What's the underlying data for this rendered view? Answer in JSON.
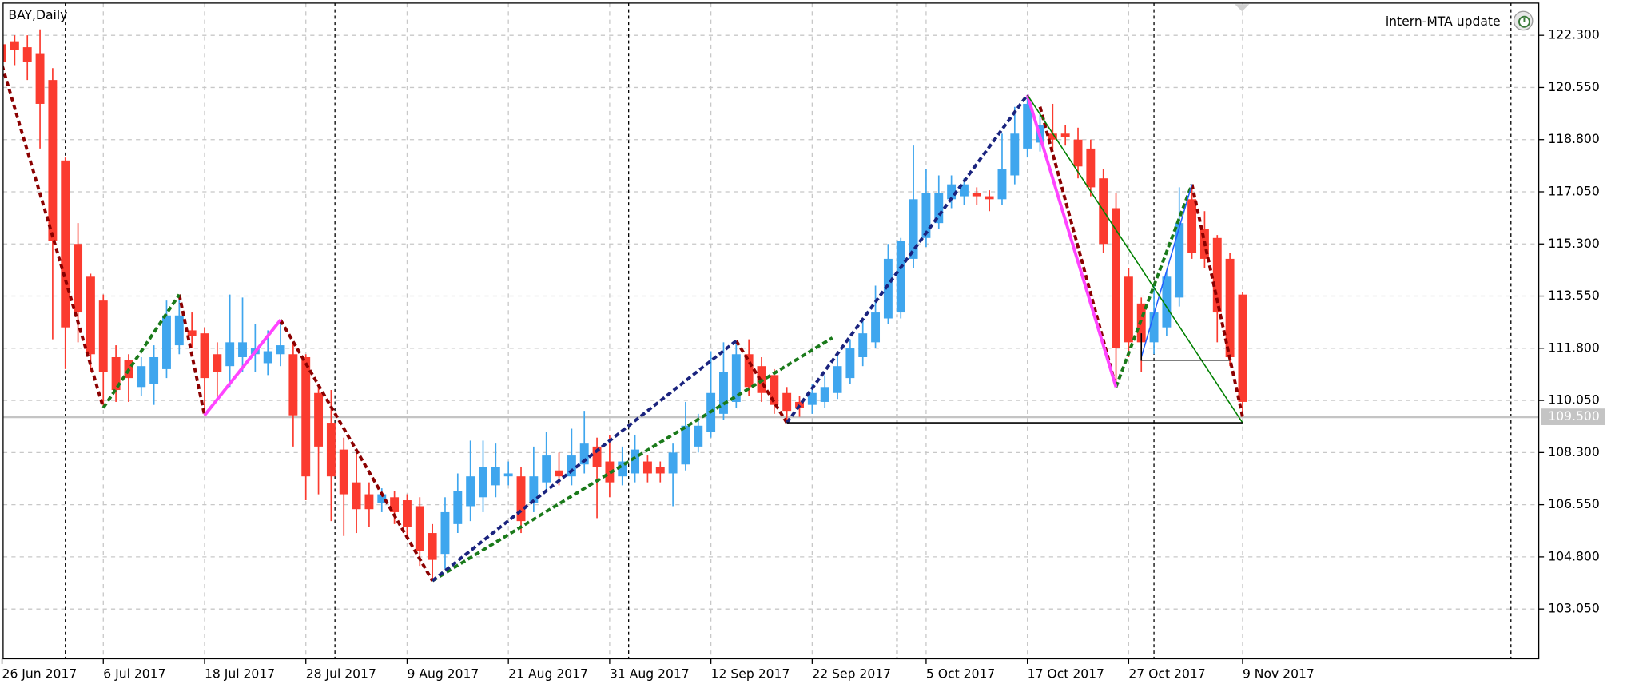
{
  "chart_data": {
    "type": "candlestick",
    "title": "BAY,Daily",
    "annotation": "intern-MTA update",
    "categories": [
      "26 Jun 2017",
      null,
      null,
      null,
      null,
      null,
      null,
      null,
      "6 Jul 2017",
      null,
      null,
      null,
      null,
      null,
      null,
      null,
      "18 Jul 2017",
      null,
      null,
      null,
      null,
      null,
      null,
      null,
      "28 Jul 2017",
      null,
      null,
      null,
      null,
      null,
      null,
      null,
      "9 Aug 2017",
      null,
      null,
      null,
      null,
      null,
      null,
      null,
      "21 Aug 2017",
      null,
      null,
      null,
      null,
      null,
      null,
      null,
      "31 Aug 2017",
      null,
      null,
      null,
      null,
      null,
      null,
      null,
      "12 Sep 2017",
      null,
      null,
      null,
      null,
      null,
      null,
      null,
      "22 Sep 2017",
      null,
      null,
      null,
      null,
      null,
      null,
      null,
      null,
      "5 Oct 2017",
      null,
      null,
      null,
      null,
      null,
      null,
      null,
      "17 Oct 2017",
      null,
      null,
      null,
      null,
      null,
      null,
      null,
      "27 Oct 2017",
      null,
      null,
      null,
      null,
      null,
      null,
      null,
      null,
      "9 Nov 2017"
    ],
    "open": [
      122.0,
      122.1,
      121.9,
      121.7,
      120.8,
      118.1,
      115.3,
      114.2,
      113.4,
      111.5,
      111.4,
      110.5,
      110.6,
      111.1,
      111.9,
      112.4,
      112.3,
      111.6,
      111.2,
      111.5,
      111.6,
      111.3,
      111.6,
      111.6,
      111.5,
      110.3,
      109.3,
      108.4,
      107.3,
      106.9,
      106.6,
      106.8,
      106.7,
      106.5,
      105.6,
      104.9,
      105.9,
      106.5,
      106.8,
      107.2,
      107.5,
      107.5,
      106.6,
      107.3,
      107.7,
      107.5,
      107.9,
      108.5,
      108.0,
      107.5,
      107.6,
      108.0,
      107.8,
      107.6,
      107.9,
      108.5,
      109.0,
      109.6,
      110.0,
      111.6,
      111.2,
      110.9,
      110.3,
      110.0,
      109.9,
      110.0,
      110.3,
      110.8,
      111.5,
      112.0,
      112.8,
      113.0,
      114.8,
      115.5,
      116.0,
      116.8,
      116.9,
      117.0,
      116.9,
      116.8,
      117.6,
      118.5,
      118.7,
      119.0,
      119.0,
      118.8,
      118.5,
      117.5,
      116.5,
      114.2,
      113.3,
      112.0,
      112.5,
      113.5,
      116.8,
      115.8,
      115.5,
      114.8,
      113.6
    ],
    "high": [
      122.4,
      122.3,
      122.3,
      122.5,
      121.2,
      118.2,
      116.0,
      114.3,
      113.6,
      111.9,
      111.6,
      111.5,
      111.9,
      113.4,
      113.6,
      113.0,
      112.5,
      112.0,
      113.6,
      113.5,
      112.6,
      112.4,
      112.75,
      112.0,
      111.6,
      110.6,
      110.4,
      108.8,
      108.3,
      107.3,
      107.1,
      107.0,
      106.9,
      106.8,
      105.9,
      106.8,
      107.6,
      108.7,
      108.7,
      108.6,
      108.0,
      107.8,
      108.5,
      109.0,
      108.3,
      109.1,
      109.7,
      108.8,
      108.9,
      108.5,
      108.9,
      108.2,
      108.0,
      108.6,
      110.0,
      109.6,
      111.7,
      112.0,
      112.05,
      112.1,
      111.5,
      111.1,
      110.5,
      110.2,
      110.6,
      110.9,
      111.6,
      112.1,
      112.8,
      113.9,
      115.3,
      115.5,
      118.6,
      117.8,
      117.6,
      117.6,
      117.5,
      117.2,
      117.1,
      119.0,
      119.9,
      120.3,
      119.7,
      120.0,
      119.3,
      119.2,
      118.8,
      117.8,
      117.0,
      114.5,
      113.5,
      113.9,
      114.4,
      117.2,
      117.3,
      116.4,
      115.6,
      115.0,
      113.7
    ],
    "low": [
      120.8,
      121.3,
      120.8,
      118.5,
      112.1,
      111.1,
      112.0,
      111.0,
      109.8,
      110.0,
      110.0,
      110.2,
      109.9,
      110.8,
      111.6,
      111.8,
      109.55,
      110.2,
      110.5,
      111.0,
      111.0,
      110.9,
      111.2,
      108.5,
      106.7,
      106.9,
      106.0,
      105.5,
      105.6,
      105.8,
      106.3,
      105.9,
      105.5,
      104.5,
      104.0,
      104.4,
      105.6,
      106.0,
      106.3,
      106.8,
      107.2,
      105.6,
      106.3,
      107.0,
      107.2,
      107.2,
      107.6,
      106.1,
      106.8,
      107.2,
      107.3,
      107.3,
      107.3,
      106.5,
      107.7,
      108.3,
      108.8,
      109.4,
      109.8,
      110.2,
      110.0,
      109.6,
      109.3,
      109.5,
      109.6,
      109.8,
      110.1,
      110.6,
      111.2,
      111.8,
      112.6,
      112.8,
      114.5,
      115.2,
      115.8,
      116.5,
      116.6,
      116.6,
      116.4,
      116.6,
      117.3,
      118.2,
      118.4,
      118.5,
      118.6,
      117.5,
      116.9,
      115.0,
      110.5,
      111.5,
      111.0,
      111.6,
      112.2,
      113.2,
      114.8,
      114.5,
      112.0,
      111.2,
      109.5
    ],
    "close": [
      121.4,
      121.8,
      121.4,
      120.0,
      115.4,
      112.5,
      113.0,
      111.6,
      111.0,
      110.4,
      110.8,
      111.2,
      111.5,
      112.9,
      112.9,
      112.2,
      110.8,
      111.0,
      112.0,
      112.0,
      111.8,
      111.7,
      111.9,
      109.55,
      107.5,
      108.5,
      107.5,
      106.9,
      106.4,
      106.4,
      106.9,
      106.3,
      105.8,
      105.0,
      104.7,
      106.3,
      107.0,
      107.5,
      107.8,
      107.8,
      107.6,
      106.0,
      107.5,
      108.2,
      107.5,
      108.2,
      108.6,
      107.8,
      107.3,
      108.0,
      108.4,
      107.6,
      107.6,
      108.3,
      109.2,
      109.2,
      110.3,
      111.0,
      111.6,
      110.5,
      110.3,
      109.9,
      109.7,
      109.8,
      110.3,
      110.5,
      111.2,
      111.8,
      112.3,
      113.0,
      114.8,
      115.4,
      116.8,
      117.0,
      117.0,
      117.3,
      117.3,
      116.9,
      116.8,
      117.8,
      119.0,
      120.0,
      119.3,
      118.8,
      118.9,
      117.9,
      117.2,
      115.3,
      111.8,
      112.0,
      112.0,
      113.0,
      114.2,
      116.0,
      115.0,
      114.8,
      113.0,
      111.5,
      110.0
    ],
    "up_color": "#3fa6ee",
    "down_color": "#fb3b2f",
    "xlim": [
      -0.16,
      121.4
    ],
    "ylim": [
      101.38,
      123.38
    ],
    "yticks": [
      {
        "value": 122.3,
        "label": "122.300"
      },
      {
        "value": 120.55,
        "label": "120.550"
      },
      {
        "value": 118.8,
        "label": "118.800"
      },
      {
        "value": 117.05,
        "label": "117.050"
      },
      {
        "value": 115.3,
        "label": "115.300"
      },
      {
        "value": 113.55,
        "label": "113.550"
      },
      {
        "value": 111.8,
        "label": "111.800"
      },
      {
        "value": 110.05,
        "label": "110.050"
      },
      {
        "value": 108.3,
        "label": "108.300"
      },
      {
        "value": 106.55,
        "label": "106.550"
      },
      {
        "value": 104.8,
        "label": "104.800"
      },
      {
        "value": 103.05,
        "label": "103.050"
      }
    ],
    "grid": true,
    "current_price": {
      "value": 109.5,
      "label": "109.500"
    },
    "period_separators": [
      5,
      26.3,
      49.5,
      70.7,
      91,
      119.2
    ],
    "lines": [
      {
        "color": "#8b0000",
        "dashed": true,
        "x": [
          0,
          8
        ],
        "y": [
          121.3,
          109.8
        ]
      },
      {
        "color": "#8b0000",
        "dashed": true,
        "x": [
          14,
          16
        ],
        "y": [
          113.6,
          109.55
        ]
      },
      {
        "color": "#8b0000",
        "dashed": true,
        "x": [
          22,
          34
        ],
        "y": [
          112.75,
          104.0
        ]
      },
      {
        "color": "#8b0000",
        "dashed": true,
        "x": [
          58,
          62
        ],
        "y": [
          112.05,
          109.3
        ]
      },
      {
        "color": "#8b0000",
        "dashed": true,
        "x": [
          82,
          88
        ],
        "y": [
          119.9,
          110.5
        ]
      },
      {
        "color": "#8b0000",
        "dashed": true,
        "x": [
          94,
          98
        ],
        "y": [
          117.3,
          109.5
        ]
      },
      {
        "color": "#1a7a1a",
        "dashed": true,
        "x": [
          8,
          14
        ],
        "y": [
          109.8,
          113.6
        ]
      },
      {
        "color": "#1a7a1a",
        "dashed": true,
        "x": [
          34,
          65.6
        ],
        "y": [
          104.0,
          112.15
        ]
      },
      {
        "color": "#1a7a1a",
        "dashed": true,
        "x": [
          88,
          94
        ],
        "y": [
          110.5,
          117.3
        ]
      },
      {
        "color": "#1a237e",
        "dashed": true,
        "x": [
          34,
          58
        ],
        "y": [
          104.0,
          112.05
        ]
      },
      {
        "color": "#1a237e",
        "dashed": true,
        "x": [
          62,
          81
        ],
        "y": [
          109.3,
          120.3
        ]
      },
      {
        "color": "#ff44ff",
        "dashed": false,
        "x": [
          16,
          22
        ],
        "y": [
          109.55,
          112.75
        ]
      },
      {
        "color": "#ff44ff",
        "dashed": false,
        "x": [
          81,
          88
        ],
        "y": [
          120.3,
          110.5
        ]
      },
      {
        "color": "#2060ff",
        "dashed": false,
        "x": [
          90,
          94
        ],
        "y": [
          111.5,
          117.3
        ]
      },
      {
        "color": "#008000",
        "dashed": false,
        "x": [
          81,
          98
        ],
        "y": [
          120.3,
          109.3
        ]
      },
      {
        "color": "#000000",
        "dashed": false,
        "x": [
          62,
          98
        ],
        "y": [
          109.3,
          109.3
        ]
      },
      {
        "color": "#000000",
        "dashed": false,
        "x": [
          90,
          90,
          97
        ],
        "y": [
          112.3,
          111.4,
          111.4
        ]
      }
    ]
  }
}
